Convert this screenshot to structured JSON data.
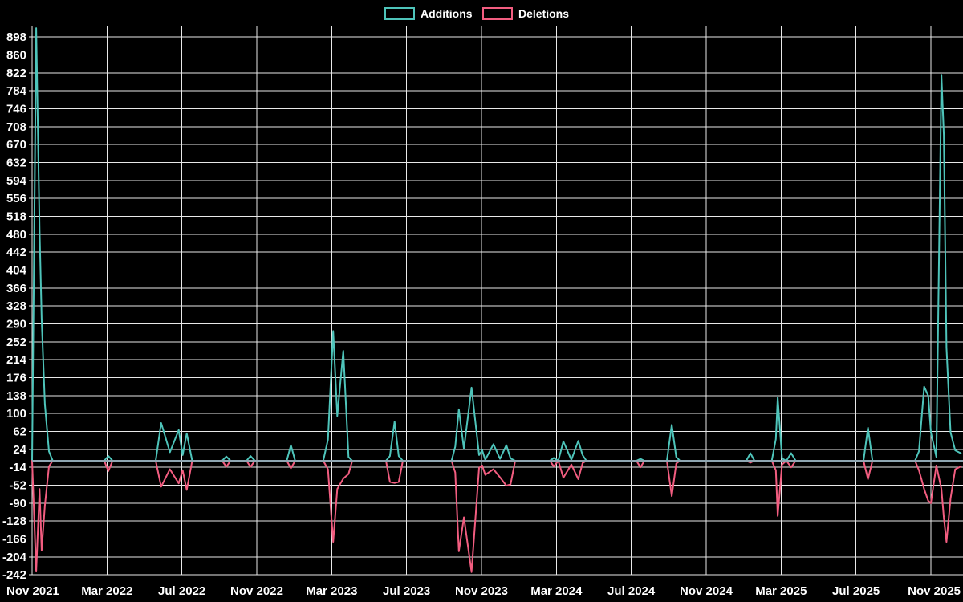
{
  "chart_data": {
    "type": "line",
    "title": "",
    "legend_position": "top-center",
    "grid": true,
    "background": "#000000",
    "series_names": [
      "Additions",
      "Deletions"
    ],
    "colors": {
      "additions": "#4EC4BA",
      "deletions": "#F25D80",
      "zero_line": "#8FA6B2",
      "grid": "#E8E8E8",
      "text": "#FFFFFF",
      "background": "#000000"
    },
    "x_tick_labels": [
      "Nov 2021",
      "Mar 2022",
      "Jul 2022",
      "Nov 2022",
      "Mar 2023",
      "Jul 2023",
      "Nov 2023",
      "Mar 2024",
      "Jul 2024",
      "Nov 2024",
      "Mar 2025",
      "Jul 2025",
      "Nov 2025"
    ],
    "y_tick_labels": [
      898,
      860,
      822,
      784,
      746,
      708,
      670,
      632,
      594,
      556,
      518,
      480,
      442,
      404,
      366,
      328,
      290,
      252,
      214,
      176,
      138,
      100,
      62,
      24,
      -14,
      -52,
      -90,
      -128,
      -166,
      -204,
      -242
    ],
    "x_unit": "months since Nov 2021 (ticks every 4 months)",
    "xlim_months": [
      0,
      49.7
    ],
    "ylim": [
      -248,
      920
    ],
    "points_format": [
      "x_months",
      "additions",
      "deletions"
    ],
    "points": [
      [
        0.0,
        0,
        0
      ],
      [
        0.22,
        917,
        -235
      ],
      [
        0.4,
        490,
        -60
      ],
      [
        0.51,
        300,
        -190
      ],
      [
        0.68,
        120,
        -95
      ],
      [
        0.9,
        20,
        -12
      ],
      [
        1.1,
        0,
        0
      ],
      [
        3.85,
        0,
        0
      ],
      [
        4.07,
        10,
        -22
      ],
      [
        4.3,
        0,
        0
      ],
      [
        6.6,
        0,
        0
      ],
      [
        6.89,
        80,
        -55
      ],
      [
        7.36,
        18,
        -18
      ],
      [
        7.83,
        65,
        -48
      ],
      [
        8.04,
        12,
        -20
      ],
      [
        8.26,
        58,
        -62
      ],
      [
        8.55,
        0,
        0
      ],
      [
        10.15,
        0,
        0
      ],
      [
        10.37,
        9,
        -13
      ],
      [
        10.6,
        0,
        0
      ],
      [
        11.45,
        0,
        0
      ],
      [
        11.66,
        10,
        -13
      ],
      [
        11.9,
        0,
        0
      ],
      [
        13.6,
        0,
        0
      ],
      [
        13.82,
        33,
        -16
      ],
      [
        14.05,
        0,
        0
      ],
      [
        15.55,
        0,
        0
      ],
      [
        15.8,
        45,
        -18
      ],
      [
        16.08,
        275,
        -172
      ],
      [
        16.3,
        95,
        -60
      ],
      [
        16.62,
        233,
        -38
      ],
      [
        16.9,
        8,
        -28
      ],
      [
        17.1,
        0,
        0
      ],
      [
        18.9,
        0,
        0
      ],
      [
        19.11,
        10,
        -45
      ],
      [
        19.36,
        83,
        -47
      ],
      [
        19.58,
        10,
        -45
      ],
      [
        19.8,
        0,
        0
      ],
      [
        22.4,
        0,
        0
      ],
      [
        22.6,
        30,
        -25
      ],
      [
        22.79,
        109,
        -192
      ],
      [
        23.06,
        25,
        -120
      ],
      [
        23.47,
        155,
        -236
      ],
      [
        23.87,
        12,
        -15
      ],
      [
        24.04,
        22,
        -10
      ],
      [
        24.2,
        2,
        -30
      ],
      [
        24.64,
        35,
        -18
      ],
      [
        24.99,
        4,
        -35
      ],
      [
        25.33,
        33,
        -53
      ],
      [
        25.55,
        5,
        -50
      ],
      [
        25.8,
        0,
        0
      ],
      [
        27.65,
        0,
        0
      ],
      [
        27.86,
        6,
        -12
      ],
      [
        28.1,
        0,
        0
      ],
      [
        28.37,
        41,
        -36
      ],
      [
        28.8,
        2,
        -8
      ],
      [
        29.17,
        42,
        -39
      ],
      [
        29.4,
        12,
        -5
      ],
      [
        29.6,
        0,
        0
      ],
      [
        32.27,
        0,
        0
      ],
      [
        32.49,
        4,
        -14
      ],
      [
        32.7,
        0,
        0
      ],
      [
        33.9,
        0,
        0
      ],
      [
        34.16,
        76,
        -75
      ],
      [
        34.4,
        8,
        -6
      ],
      [
        34.6,
        0,
        0
      ],
      [
        38.14,
        0,
        0
      ],
      [
        38.36,
        16,
        -4
      ],
      [
        38.58,
        0,
        0
      ],
      [
        39.5,
        0,
        0
      ],
      [
        39.72,
        46,
        -20
      ],
      [
        39.82,
        134,
        -117
      ],
      [
        40.05,
        5,
        -8
      ],
      [
        40.28,
        0,
        0
      ],
      [
        40.54,
        16,
        -14
      ],
      [
        40.78,
        0,
        0
      ],
      [
        44.4,
        0,
        0
      ],
      [
        44.64,
        70,
        -39
      ],
      [
        44.88,
        0,
        0
      ],
      [
        47.15,
        0,
        0
      ],
      [
        47.36,
        20,
        -20
      ],
      [
        47.64,
        157,
        -60
      ],
      [
        47.86,
        138,
        -85
      ],
      [
        48.0,
        60,
        -90
      ],
      [
        48.29,
        8,
        -10
      ],
      [
        48.56,
        818,
        -60
      ],
      [
        48.69,
        691,
        -120
      ],
      [
        48.83,
        240,
        -172
      ],
      [
        49.05,
        60,
        -80
      ],
      [
        49.3,
        22,
        -18
      ],
      [
        49.6,
        16,
        -12
      ]
    ]
  },
  "legend": {
    "additions_label": "Additions",
    "deletions_label": "Deletions"
  }
}
